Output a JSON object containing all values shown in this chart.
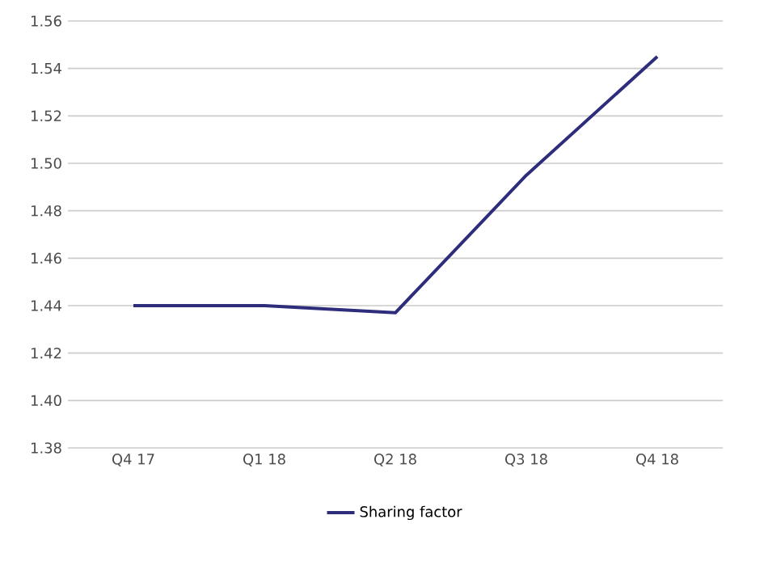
{
  "chart_data": {
    "type": "line",
    "categories": [
      "Q4 17",
      "Q1 18",
      "Q2 18",
      "Q3 18",
      "Q4 18"
    ],
    "series": [
      {
        "name": "Sharing factor",
        "color": "#2e2d7c",
        "values": [
          1.44,
          1.44,
          1.437,
          1.495,
          1.545
        ]
      }
    ],
    "ylim": [
      1.38,
      1.56
    ],
    "yticks": [
      1.38,
      {
        "value": 1.4,
        "label": "1.40"
      },
      1.42,
      1.44,
      1.46,
      1.48,
      {
        "value": 1.5,
        "label": "1.50"
      },
      1.52,
      1.54,
      1.56
    ],
    "grid": "y",
    "legend": "bottom",
    "marker": "none",
    "line_style": "solid"
  }
}
